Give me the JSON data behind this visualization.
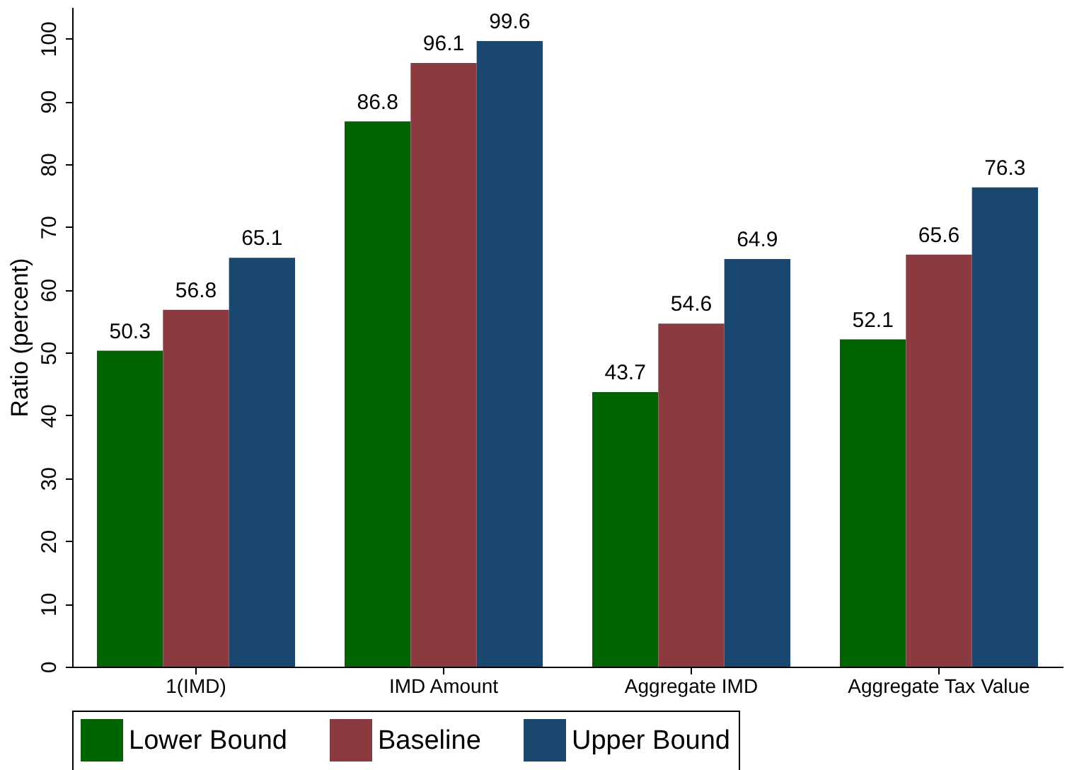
{
  "chart_data": {
    "type": "bar",
    "ylabel": "Ratio (percent)",
    "categories": [
      "1(IMD)",
      "IMD Amount",
      "Aggregate IMD",
      "Aggregate Tax Value"
    ],
    "series": [
      {
        "name": "Lower Bound",
        "color": "#006400",
        "values": [
          50.3,
          86.8,
          43.7,
          52.1
        ]
      },
      {
        "name": "Baseline",
        "color": "#8b3a40",
        "values": [
          56.8,
          96.1,
          54.6,
          65.6
        ]
      },
      {
        "name": "Upper Bound",
        "color": "#1a476f",
        "values": [
          65.1,
          99.6,
          64.9,
          76.3
        ]
      }
    ],
    "ylim": [
      0,
      105
    ],
    "yticks": [
      0,
      10,
      20,
      30,
      40,
      50,
      60,
      70,
      80,
      90,
      100
    ],
    "data_labels": true,
    "legend": "bottom",
    "grid": false
  }
}
